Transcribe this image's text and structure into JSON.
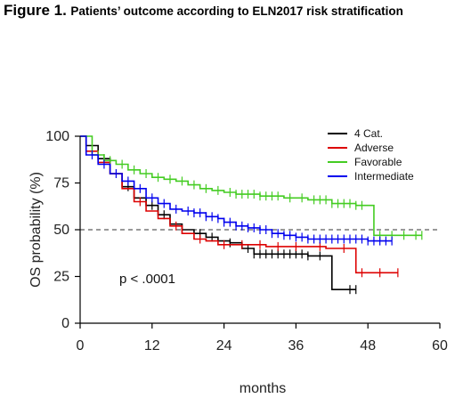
{
  "figure": {
    "number": "Figure 1.",
    "title": "Patients’ outcome according to ELN2017 risk stratification"
  },
  "chart_data": {
    "type": "line",
    "xlabel": "months",
    "ylabel": "OS probability (%)",
    "xlim": [
      0,
      60
    ],
    "ylim": [
      0,
      100
    ],
    "xticks": [
      0,
      12,
      24,
      36,
      48,
      60
    ],
    "yticks": [
      0,
      25,
      50,
      75,
      100
    ],
    "reference_line": 50,
    "legend_position": "top-right",
    "annotation": "p < .0001",
    "series": [
      {
        "name": "4 Cat.",
        "color": "#000000",
        "points": [
          [
            0,
            100
          ],
          [
            1,
            95
          ],
          [
            3,
            88
          ],
          [
            5,
            80
          ],
          [
            7,
            73
          ],
          [
            9,
            67
          ],
          [
            11,
            63
          ],
          [
            13,
            58
          ],
          [
            15,
            53
          ],
          [
            17,
            50
          ],
          [
            19,
            48
          ],
          [
            21,
            46
          ],
          [
            23,
            44
          ],
          [
            25,
            43
          ],
          [
            27,
            40
          ],
          [
            29,
            37
          ],
          [
            31,
            37
          ],
          [
            33,
            37
          ],
          [
            35,
            37
          ],
          [
            36,
            37
          ],
          [
            38,
            36
          ],
          [
            42,
            36
          ],
          [
            42,
            18
          ],
          [
            46,
            18
          ]
        ],
        "censor_x": [
          4,
          8,
          12,
          14,
          17,
          20,
          22,
          25,
          28,
          29,
          30,
          31,
          32,
          33,
          34,
          35,
          36,
          37,
          38,
          40,
          45,
          46
        ]
      },
      {
        "name": "Adverse",
        "color": "#dd0000",
        "points": [
          [
            0,
            100
          ],
          [
            1,
            92
          ],
          [
            3,
            86
          ],
          [
            5,
            80
          ],
          [
            7,
            72
          ],
          [
            9,
            65
          ],
          [
            11,
            60
          ],
          [
            13,
            56
          ],
          [
            15,
            52
          ],
          [
            17,
            48
          ],
          [
            19,
            45
          ],
          [
            21,
            44
          ],
          [
            23,
            42
          ],
          [
            25,
            42
          ],
          [
            29,
            42
          ],
          [
            31,
            41
          ],
          [
            35,
            41
          ],
          [
            38,
            41
          ],
          [
            41,
            40
          ],
          [
            44,
            40
          ],
          [
            46,
            40
          ],
          [
            46,
            27
          ],
          [
            53,
            27
          ]
        ],
        "censor_x": [
          10,
          16,
          20,
          24,
          27,
          30,
          33,
          36,
          40,
          44,
          47,
          50,
          53
        ]
      },
      {
        "name": "Favorable",
        "color": "#44cc22",
        "points": [
          [
            0,
            100
          ],
          [
            2,
            90
          ],
          [
            4,
            87
          ],
          [
            6,
            85
          ],
          [
            8,
            82
          ],
          [
            10,
            80
          ],
          [
            12,
            78
          ],
          [
            14,
            77
          ],
          [
            16,
            76
          ],
          [
            18,
            74
          ],
          [
            20,
            72
          ],
          [
            22,
            71
          ],
          [
            24,
            70
          ],
          [
            26,
            69
          ],
          [
            30,
            68
          ],
          [
            34,
            67
          ],
          [
            38,
            66
          ],
          [
            42,
            64
          ],
          [
            46,
            63
          ],
          [
            49,
            63
          ],
          [
            49,
            47
          ],
          [
            57,
            47
          ]
        ],
        "censor_x": [
          3,
          5,
          7,
          9,
          11,
          13,
          15,
          17,
          19,
          21,
          23,
          25,
          26,
          27,
          28,
          29,
          30,
          31,
          32,
          33,
          35,
          37,
          39,
          40,
          41,
          42,
          43,
          44,
          45,
          46,
          47,
          50,
          52,
          54,
          56,
          57
        ]
      },
      {
        "name": "Intermediate",
        "color": "#0000ee",
        "points": [
          [
            0,
            100
          ],
          [
            1,
            90
          ],
          [
            3,
            85
          ],
          [
            5,
            80
          ],
          [
            7,
            76
          ],
          [
            9,
            72
          ],
          [
            11,
            67
          ],
          [
            13,
            64
          ],
          [
            15,
            61
          ],
          [
            17,
            60
          ],
          [
            19,
            59
          ],
          [
            21,
            57
          ],
          [
            23,
            56
          ],
          [
            24,
            54
          ],
          [
            26,
            52
          ],
          [
            28,
            51
          ],
          [
            30,
            50
          ],
          [
            32,
            48
          ],
          [
            34,
            47
          ],
          [
            36,
            46
          ],
          [
            38,
            45
          ],
          [
            40,
            45
          ],
          [
            44,
            45
          ],
          [
            48,
            44
          ],
          [
            52,
            44
          ]
        ],
        "censor_x": [
          2,
          4,
          6,
          8,
          10,
          12,
          14,
          16,
          18,
          19,
          20,
          21,
          22,
          23,
          24,
          25,
          26,
          27,
          28,
          29,
          30,
          31,
          32,
          33,
          34,
          35,
          36,
          37,
          38,
          39,
          40,
          41,
          42,
          43,
          44,
          45,
          46,
          47,
          48,
          49,
          50,
          51,
          52
        ]
      }
    ]
  }
}
